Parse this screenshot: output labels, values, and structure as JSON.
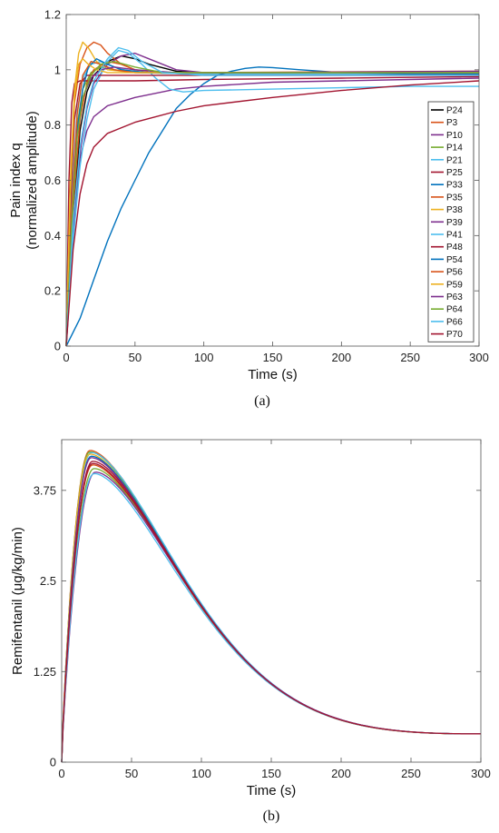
{
  "chart_data": [
    {
      "type": "line",
      "panel_caption": "(a)",
      "xlabel": "Time (s)",
      "ylabel": "Pain index q",
      "ylabel2": "(normalized amplitude)",
      "xlim": [
        0,
        300
      ],
      "ylim": [
        0,
        1.2
      ],
      "xticks": [
        0,
        50,
        100,
        150,
        200,
        250,
        300
      ],
      "yticks": [
        0,
        0.2,
        0.4,
        0.6,
        0.8,
        1,
        1.2
      ],
      "ytick_labels": [
        "0",
        "0.2",
        "0.4",
        "0.6",
        "0.8",
        "1",
        "1.2"
      ],
      "grid": false,
      "legend_position": "right",
      "series": [
        {
          "name": "P24",
          "color": "#000000",
          "points": [
            [
              0,
              0
            ],
            [
              5,
              0.45
            ],
            [
              10,
              0.78
            ],
            [
              15,
              0.92
            ],
            [
              20,
              0.98
            ],
            [
              30,
              1.03
            ],
            [
              40,
              1.05
            ],
            [
              50,
              1.04
            ],
            [
              60,
              1.02
            ],
            [
              80,
              0.995
            ],
            [
              100,
              0.99
            ],
            [
              150,
              0.99
            ],
            [
              200,
              0.99
            ],
            [
              300,
              0.99
            ]
          ]
        },
        {
          "name": "P3",
          "color": "#d95319",
          "points": [
            [
              0,
              0
            ],
            [
              3,
              0.55
            ],
            [
              6,
              0.88
            ],
            [
              10,
              1.02
            ],
            [
              15,
              1.08
            ],
            [
              20,
              1.1
            ],
            [
              25,
              1.09
            ],
            [
              30,
              1.06
            ],
            [
              40,
              1.02
            ],
            [
              50,
              1.0
            ],
            [
              70,
              0.99
            ],
            [
              100,
              0.99
            ],
            [
              200,
              0.99
            ],
            [
              300,
              0.99
            ]
          ]
        },
        {
          "name": "P10",
          "color": "#7e2f8e",
          "points": [
            [
              0,
              0
            ],
            [
              5,
              0.4
            ],
            [
              10,
              0.7
            ],
            [
              15,
              0.86
            ],
            [
              20,
              0.95
            ],
            [
              30,
              1.02
            ],
            [
              40,
              1.05
            ],
            [
              50,
              1.06
            ],
            [
              60,
              1.04
            ],
            [
              80,
              1.0
            ],
            [
              100,
              0.99
            ],
            [
              150,
              0.99
            ],
            [
              300,
              0.99
            ]
          ]
        },
        {
          "name": "P14",
          "color": "#77ac30",
          "points": [
            [
              0,
              0
            ],
            [
              4,
              0.5
            ],
            [
              8,
              0.8
            ],
            [
              12,
              0.93
            ],
            [
              18,
              0.99
            ],
            [
              25,
              1.01
            ],
            [
              35,
              1.0
            ],
            [
              50,
              0.99
            ],
            [
              100,
              0.985
            ],
            [
              200,
              0.985
            ],
            [
              300,
              0.985
            ]
          ]
        },
        {
          "name": "P21",
          "color": "#4dbeee",
          "points": [
            [
              0,
              0
            ],
            [
              4,
              0.55
            ],
            [
              8,
              0.85
            ],
            [
              12,
              0.97
            ],
            [
              18,
              1.02
            ],
            [
              25,
              1.03
            ],
            [
              35,
              1.01
            ],
            [
              50,
              0.99
            ],
            [
              100,
              0.985
            ],
            [
              300,
              0.985
            ]
          ]
        },
        {
          "name": "P25",
          "color": "#a2142f",
          "points": [
            [
              0,
              0
            ],
            [
              2,
              0.6
            ],
            [
              4,
              0.88
            ],
            [
              6,
              0.95
            ],
            [
              10,
              0.96
            ],
            [
              20,
              0.96
            ],
            [
              50,
              0.96
            ],
            [
              100,
              0.965
            ],
            [
              200,
              0.97
            ],
            [
              300,
              0.975
            ]
          ]
        },
        {
          "name": "P33",
          "color": "#0072bd",
          "points": [
            [
              0,
              0
            ],
            [
              10,
              0.1
            ],
            [
              20,
              0.24
            ],
            [
              30,
              0.38
            ],
            [
              40,
              0.5
            ],
            [
              50,
              0.6
            ],
            [
              60,
              0.7
            ],
            [
              70,
              0.78
            ],
            [
              80,
              0.86
            ],
            [
              90,
              0.91
            ],
            [
              100,
              0.95
            ],
            [
              110,
              0.98
            ],
            [
              120,
              0.995
            ],
            [
              130,
              1.005
            ],
            [
              140,
              1.01
            ],
            [
              150,
              1.008
            ],
            [
              170,
              1.0
            ],
            [
              200,
              0.99
            ],
            [
              250,
              0.985
            ],
            [
              300,
              0.985
            ]
          ]
        },
        {
          "name": "P35",
          "color": "#d95319",
          "points": [
            [
              0,
              0
            ],
            [
              5,
              0.5
            ],
            [
              10,
              0.82
            ],
            [
              15,
              0.95
            ],
            [
              20,
              1.0
            ],
            [
              30,
              1.03
            ],
            [
              40,
              1.02
            ],
            [
              50,
              1.0
            ],
            [
              70,
              0.99
            ],
            [
              100,
              0.99
            ],
            [
              300,
              0.99
            ]
          ]
        },
        {
          "name": "P38",
          "color": "#edb120",
          "points": [
            [
              0,
              0
            ],
            [
              3,
              0.6
            ],
            [
              6,
              0.93
            ],
            [
              9,
              1.06
            ],
            [
              12,
              1.1
            ],
            [
              16,
              1.08
            ],
            [
              22,
              1.03
            ],
            [
              30,
              1.0
            ],
            [
              50,
              0.99
            ],
            [
              100,
              0.99
            ],
            [
              300,
              0.99
            ]
          ]
        },
        {
          "name": "P39",
          "color": "#7e2f8e",
          "points": [
            [
              0,
              0
            ],
            [
              5,
              0.42
            ],
            [
              10,
              0.68
            ],
            [
              15,
              0.78
            ],
            [
              20,
              0.83
            ],
            [
              30,
              0.87
            ],
            [
              50,
              0.9
            ],
            [
              80,
              0.93
            ],
            [
              100,
              0.94
            ],
            [
              150,
              0.955
            ],
            [
              200,
              0.96
            ],
            [
              250,
              0.965
            ],
            [
              300,
              0.97
            ]
          ]
        },
        {
          "name": "P41",
          "color": "#4dbeee",
          "points": [
            [
              0,
              0
            ],
            [
              5,
              0.38
            ],
            [
              10,
              0.65
            ],
            [
              15,
              0.82
            ],
            [
              20,
              0.93
            ],
            [
              30,
              1.03
            ],
            [
              38,
              1.07
            ],
            [
              45,
              1.06
            ],
            [
              55,
              1.02
            ],
            [
              65,
              0.97
            ],
            [
              75,
              0.93
            ],
            [
              85,
              0.92
            ],
            [
              100,
              0.925
            ],
            [
              150,
              0.93
            ],
            [
              200,
              0.935
            ],
            [
              250,
              0.94
            ],
            [
              300,
              0.94
            ]
          ]
        },
        {
          "name": "P48",
          "color": "#a2142f",
          "points": [
            [
              0,
              0
            ],
            [
              3,
              0.5
            ],
            [
              6,
              0.82
            ],
            [
              10,
              0.95
            ],
            [
              15,
              0.98
            ],
            [
              25,
              0.98
            ],
            [
              50,
              0.98
            ],
            [
              100,
              0.98
            ],
            [
              300,
              0.98
            ]
          ]
        },
        {
          "name": "P54",
          "color": "#0072bd",
          "points": [
            [
              0,
              0
            ],
            [
              4,
              0.45
            ],
            [
              8,
              0.78
            ],
            [
              12,
              0.93
            ],
            [
              16,
              1.01
            ],
            [
              22,
              1.04
            ],
            [
              30,
              1.02
            ],
            [
              40,
              1.0
            ],
            [
              60,
              0.99
            ],
            [
              100,
              0.99
            ],
            [
              300,
              0.99
            ]
          ]
        },
        {
          "name": "P56",
          "color": "#d95319",
          "points": [
            [
              0,
              0
            ],
            [
              4,
              0.5
            ],
            [
              8,
              0.84
            ],
            [
              12,
              0.98
            ],
            [
              18,
              1.03
            ],
            [
              25,
              1.02
            ],
            [
              35,
              1.0
            ],
            [
              50,
              0.99
            ],
            [
              100,
              0.99
            ],
            [
              300,
              0.995
            ]
          ]
        },
        {
          "name": "P59",
          "color": "#edb120",
          "points": [
            [
              0,
              0
            ],
            [
              3,
              0.55
            ],
            [
              6,
              0.9
            ],
            [
              9,
              1.02
            ],
            [
              12,
              1.04
            ],
            [
              16,
              1.02
            ],
            [
              22,
              1.0
            ],
            [
              30,
              0.99
            ],
            [
              100,
              0.99
            ],
            [
              300,
              0.99
            ]
          ]
        },
        {
          "name": "P63",
          "color": "#7e2f8e",
          "points": [
            [
              0,
              0
            ],
            [
              4,
              0.45
            ],
            [
              8,
              0.76
            ],
            [
              12,
              0.9
            ],
            [
              18,
              0.97
            ],
            [
              25,
              1.0
            ],
            [
              35,
              1.01
            ],
            [
              50,
              1.0
            ],
            [
              80,
              0.99
            ],
            [
              150,
              0.99
            ],
            [
              300,
              0.995
            ]
          ]
        },
        {
          "name": "P64",
          "color": "#77ac30",
          "points": [
            [
              0,
              0
            ],
            [
              4,
              0.45
            ],
            [
              8,
              0.76
            ],
            [
              12,
              0.9
            ],
            [
              18,
              0.98
            ],
            [
              25,
              1.02
            ],
            [
              35,
              1.03
            ],
            [
              50,
              1.01
            ],
            [
              70,
              0.99
            ],
            [
              150,
              0.99
            ],
            [
              300,
              0.99
            ]
          ]
        },
        {
          "name": "P66",
          "color": "#4dbeee",
          "points": [
            [
              0,
              0
            ],
            [
              5,
              0.45
            ],
            [
              10,
              0.72
            ],
            [
              15,
              0.87
            ],
            [
              20,
              0.96
            ],
            [
              30,
              1.04
            ],
            [
              38,
              1.08
            ],
            [
              45,
              1.07
            ],
            [
              55,
              1.03
            ],
            [
              70,
              0.99
            ],
            [
              100,
              0.98
            ],
            [
              300,
              0.98
            ]
          ]
        },
        {
          "name": "P70",
          "color": "#a2142f",
          "points": [
            [
              0,
              0
            ],
            [
              5,
              0.35
            ],
            [
              10,
              0.55
            ],
            [
              15,
              0.66
            ],
            [
              20,
              0.72
            ],
            [
              30,
              0.77
            ],
            [
              50,
              0.81
            ],
            [
              80,
              0.85
            ],
            [
              100,
              0.87
            ],
            [
              150,
              0.9
            ],
            [
              200,
              0.925
            ],
            [
              250,
              0.945
            ],
            [
              300,
              0.96
            ]
          ]
        }
      ]
    },
    {
      "type": "line",
      "panel_caption": "(b)",
      "xlabel": "Time (s)",
      "ylabel": "Remifentanil (μg/kg/min)",
      "xlim": [
        0,
        300
      ],
      "ylim": [
        0,
        4.45
      ],
      "xticks": [
        0,
        50,
        100,
        150,
        200,
        250,
        300
      ],
      "yticks": [
        0,
        1.25,
        2.5,
        3.75
      ],
      "ytick_labels": [
        "0",
        "1.25",
        "2.5",
        "3.75"
      ],
      "grid": false,
      "series": [
        {
          "peak": 4.3,
          "tpeak": 20,
          "color": "#d95319"
        },
        {
          "peak": 4.28,
          "tpeak": 20,
          "color": "#77ac30"
        },
        {
          "peak": 4.27,
          "tpeak": 21,
          "color": "#4dbeee"
        },
        {
          "peak": 4.25,
          "tpeak": 20,
          "color": "#edb120"
        },
        {
          "peak": 4.22,
          "tpeak": 21,
          "color": "#0072bd"
        },
        {
          "peak": 4.2,
          "tpeak": 21,
          "color": "#7e2f8e"
        },
        {
          "peak": 4.15,
          "tpeak": 22,
          "color": "#a2142f"
        },
        {
          "peak": 4.1,
          "tpeak": 22,
          "color": "#d95319"
        },
        {
          "peak": 4.05,
          "tpeak": 23,
          "color": "#77ac30"
        },
        {
          "peak": 4.0,
          "tpeak": 24,
          "color": "#7e2f8e"
        },
        {
          "peak": 3.98,
          "tpeak": 23,
          "color": "#4dbeee"
        },
        {
          "peak": 4.12,
          "tpeak": 22,
          "color": "#a2142f"
        }
      ]
    }
  ]
}
